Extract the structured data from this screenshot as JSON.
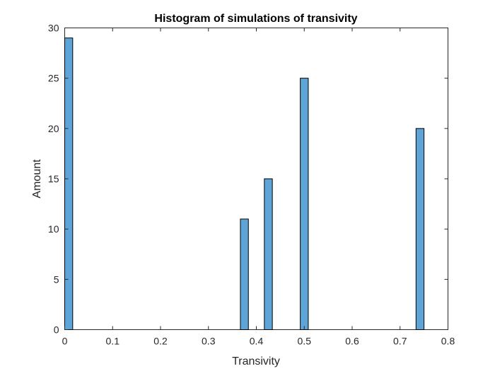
{
  "chart_data": {
    "type": "histogram",
    "title": "Histogram of simulations of transivity",
    "xlabel": "Transivity",
    "ylabel": "Amount",
    "xlim": [
      0,
      0.8
    ],
    "ylim": [
      0,
      30
    ],
    "xticks": [
      "0",
      "0.1",
      "0.2",
      "0.3",
      "0.4",
      "0.5",
      "0.6",
      "0.7",
      "0.8"
    ],
    "yticks": [
      "0",
      "5",
      "10",
      "15",
      "20",
      "25",
      "30"
    ],
    "bin_width": 0.0167,
    "bars": [
      {
        "x_start": 0.0,
        "value": 29
      },
      {
        "x_start": 0.3667,
        "value": 11
      },
      {
        "x_start": 0.4167,
        "value": 15
      },
      {
        "x_start": 0.4917,
        "value": 25
      },
      {
        "x_start": 0.7333,
        "value": 20
      }
    ],
    "bar_color": "#5ea4d6",
    "edge_color": "#000000",
    "grid": false,
    "legend": null
  }
}
